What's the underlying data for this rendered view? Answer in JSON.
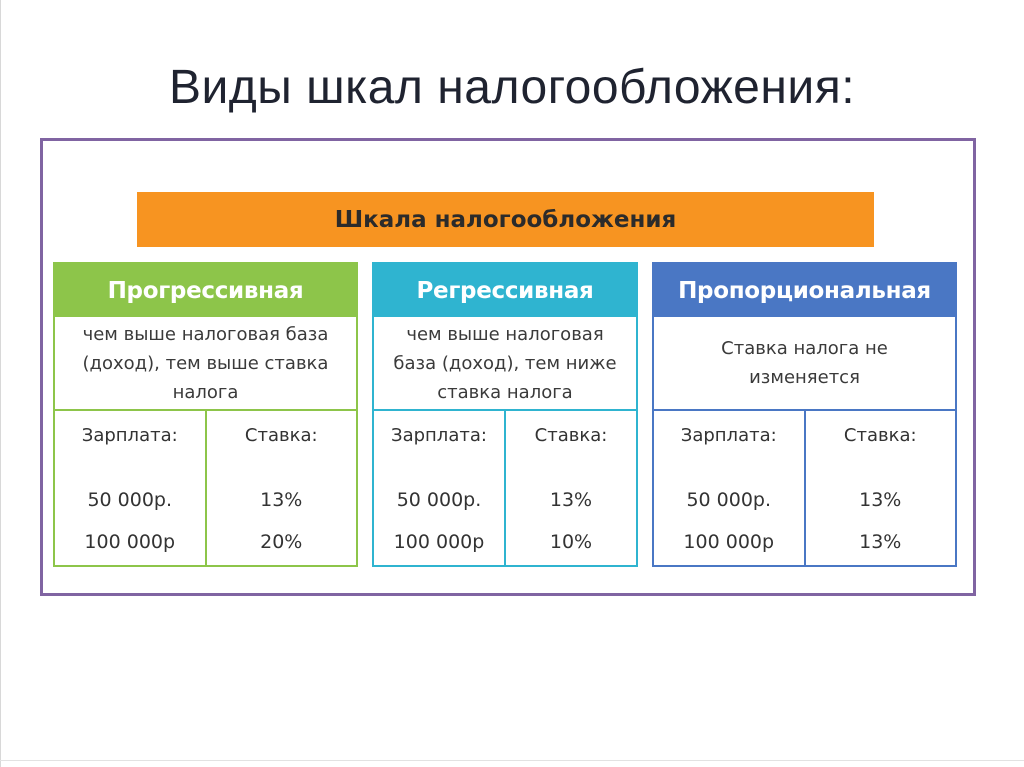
{
  "title": "Виды шкал налогообложения:",
  "header": "Шкала налогообложения",
  "colors": {
    "frame": "#8064a2",
    "header": "#f79421",
    "progressive": "#8dc54a",
    "regressive": "#2fb4d0",
    "proportional": "#4a77c4"
  },
  "cards": [
    {
      "title": "Прогрессивная",
      "desc": "чем выше налоговая база (доход), тем выше ставка налога",
      "salary_label": "Зарплата:",
      "rate_label": "Ставка:",
      "salary_1": "50 000р.",
      "salary_2": "100 000р",
      "rate_1": "13%",
      "rate_2": "20%"
    },
    {
      "title": "Регрессивная",
      "desc": "чем выше налоговая база (доход), тем ниже ставка налога",
      "salary_label": "Зарплата:",
      "rate_label": "Ставка:",
      "salary_1": "50 000р.",
      "salary_2": "100 000р",
      "rate_1": "13%",
      "rate_2": "10%"
    },
    {
      "title": "Пропорциональная",
      "desc": "Ставка налога не изменяется",
      "salary_label": "Зарплата:",
      "rate_label": "Ставка:",
      "salary_1": "50 000р.",
      "salary_2": "100 000р",
      "rate_1": "13%",
      "rate_2": "13%"
    }
  ]
}
